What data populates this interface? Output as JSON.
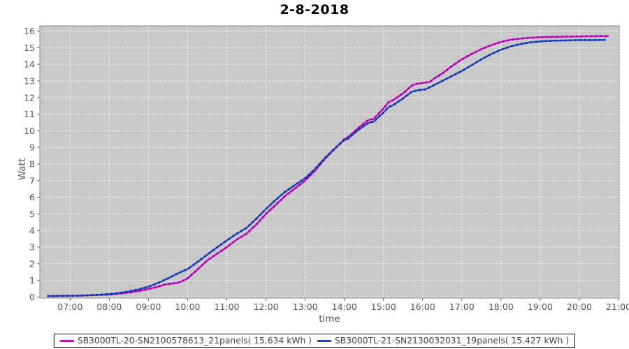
{
  "title": "2-8-2018",
  "colors": {
    "plot_background": "#C9C9C9",
    "plot_border": "#888888",
    "gridline": "#FFFFFF",
    "tick_text": "#555555",
    "series1": "#CC00CC",
    "series1_dark": "#7A007A",
    "series2": "#1B46C8",
    "series2_dark": "#0A1E78"
  },
  "legend": {
    "items": [
      {
        "label": "SB3000TL-20-SN2100578613_21panels( 15.634 kWh )",
        "color": "#CC00CC"
      },
      {
        "label": "SB3000TL-21-SN2130032031_19panels( 15.427 kWh )",
        "color": "#1B46C8"
      }
    ]
  },
  "chart_data": {
    "type": "line",
    "title": "2-8-2018",
    "xlabel": "time",
    "ylabel": "Watt",
    "xlim_hours": [
      6.23,
      21.02
    ],
    "ylim": [
      0,
      16.35
    ],
    "grid": true,
    "legend_position": "bottom",
    "y_ticks": [
      0,
      1,
      2,
      3,
      4,
      5,
      6,
      7,
      8,
      9,
      10,
      11,
      12,
      13,
      14,
      15,
      16
    ],
    "x_ticks": [
      {
        "t": 7,
        "label": "07:00"
      },
      {
        "t": 8,
        "label": "08:00"
      },
      {
        "t": 9,
        "label": "09:00"
      },
      {
        "t": 10,
        "label": "10:00"
      },
      {
        "t": 11,
        "label": "11:00"
      },
      {
        "t": 12,
        "label": "12:00"
      },
      {
        "t": 13,
        "label": "13:00"
      },
      {
        "t": 14,
        "label": "14:00"
      },
      {
        "t": 15,
        "label": "15:00"
      },
      {
        "t": 16,
        "label": "16:00"
      },
      {
        "t": 17,
        "label": "17:00"
      },
      {
        "t": 18,
        "label": "18:00"
      },
      {
        "t": 19,
        "label": "19:00"
      },
      {
        "t": 20,
        "label": "20:00"
      },
      {
        "t": 21,
        "label": "21:00"
      }
    ],
    "series": [
      {
        "name": "SB3000TL-20-SN2100578613_21panels( 15.634 kWh )",
        "total_kwh": 15.634,
        "color": "#CC00CC",
        "points": [
          [
            6.42,
            0.05
          ],
          [
            6.67,
            0.06
          ],
          [
            7.0,
            0.07
          ],
          [
            7.33,
            0.09
          ],
          [
            7.67,
            0.12
          ],
          [
            8.0,
            0.15
          ],
          [
            8.25,
            0.2
          ],
          [
            8.5,
            0.27
          ],
          [
            8.75,
            0.36
          ],
          [
            9.0,
            0.48
          ],
          [
            9.25,
            0.62
          ],
          [
            9.42,
            0.75
          ],
          [
            9.55,
            0.8
          ],
          [
            9.75,
            0.85
          ],
          [
            9.9,
            1.0
          ],
          [
            10.0,
            1.12
          ],
          [
            10.25,
            1.65
          ],
          [
            10.5,
            2.2
          ],
          [
            10.75,
            2.6
          ],
          [
            11.0,
            3.0
          ],
          [
            11.25,
            3.45
          ],
          [
            11.5,
            3.8
          ],
          [
            11.75,
            4.35
          ],
          [
            12.0,
            5.0
          ],
          [
            12.25,
            5.55
          ],
          [
            12.5,
            6.1
          ],
          [
            12.75,
            6.55
          ],
          [
            13.0,
            7.0
          ],
          [
            13.25,
            7.6
          ],
          [
            13.5,
            8.3
          ],
          [
            13.75,
            8.9
          ],
          [
            13.92,
            9.3
          ],
          [
            14.0,
            9.5
          ],
          [
            14.08,
            9.58
          ],
          [
            14.25,
            9.95
          ],
          [
            14.5,
            10.45
          ],
          [
            14.62,
            10.65
          ],
          [
            14.75,
            10.72
          ],
          [
            15.0,
            11.35
          ],
          [
            15.13,
            11.72
          ],
          [
            15.25,
            11.85
          ],
          [
            15.5,
            12.25
          ],
          [
            15.72,
            12.72
          ],
          [
            15.83,
            12.82
          ],
          [
            16.0,
            12.88
          ],
          [
            16.17,
            12.93
          ],
          [
            16.33,
            13.2
          ],
          [
            16.5,
            13.45
          ],
          [
            16.75,
            13.9
          ],
          [
            17.0,
            14.3
          ],
          [
            17.25,
            14.62
          ],
          [
            17.5,
            14.92
          ],
          [
            17.75,
            15.15
          ],
          [
            18.0,
            15.35
          ],
          [
            18.25,
            15.48
          ],
          [
            18.5,
            15.55
          ],
          [
            18.75,
            15.6
          ],
          [
            19.0,
            15.63
          ],
          [
            19.33,
            15.65
          ],
          [
            19.67,
            15.67
          ],
          [
            20.0,
            15.68
          ],
          [
            20.33,
            15.69
          ],
          [
            20.75,
            15.7
          ]
        ]
      },
      {
        "name": "SB3000TL-21-SN2130032031_19panels( 15.427 kWh )",
        "total_kwh": 15.427,
        "color": "#1B46C8",
        "points": [
          [
            6.42,
            0.05
          ],
          [
            6.67,
            0.06
          ],
          [
            7.0,
            0.07
          ],
          [
            7.33,
            0.09
          ],
          [
            7.67,
            0.13
          ],
          [
            8.0,
            0.17
          ],
          [
            8.25,
            0.24
          ],
          [
            8.5,
            0.33
          ],
          [
            8.75,
            0.46
          ],
          [
            9.0,
            0.62
          ],
          [
            9.25,
            0.85
          ],
          [
            9.5,
            1.12
          ],
          [
            9.75,
            1.42
          ],
          [
            10.0,
            1.68
          ],
          [
            10.25,
            2.1
          ],
          [
            10.5,
            2.55
          ],
          [
            10.75,
            2.98
          ],
          [
            11.0,
            3.4
          ],
          [
            11.25,
            3.8
          ],
          [
            11.5,
            4.15
          ],
          [
            11.75,
            4.7
          ],
          [
            12.0,
            5.3
          ],
          [
            12.25,
            5.85
          ],
          [
            12.5,
            6.35
          ],
          [
            12.75,
            6.75
          ],
          [
            13.0,
            7.15
          ],
          [
            13.25,
            7.7
          ],
          [
            13.5,
            8.35
          ],
          [
            13.75,
            8.92
          ],
          [
            13.92,
            9.28
          ],
          [
            14.0,
            9.45
          ],
          [
            14.08,
            9.5
          ],
          [
            14.25,
            9.85
          ],
          [
            14.5,
            10.3
          ],
          [
            14.62,
            10.48
          ],
          [
            14.75,
            10.55
          ],
          [
            15.0,
            11.1
          ],
          [
            15.13,
            11.42
          ],
          [
            15.25,
            11.55
          ],
          [
            15.5,
            11.95
          ],
          [
            15.72,
            12.35
          ],
          [
            15.9,
            12.45
          ],
          [
            16.08,
            12.5
          ],
          [
            16.25,
            12.7
          ],
          [
            16.5,
            13.0
          ],
          [
            16.75,
            13.3
          ],
          [
            17.0,
            13.6
          ],
          [
            17.25,
            13.95
          ],
          [
            17.5,
            14.3
          ],
          [
            17.75,
            14.62
          ],
          [
            18.0,
            14.88
          ],
          [
            18.25,
            15.08
          ],
          [
            18.5,
            15.22
          ],
          [
            18.75,
            15.32
          ],
          [
            19.0,
            15.38
          ],
          [
            19.33,
            15.42
          ],
          [
            19.67,
            15.44
          ],
          [
            20.0,
            15.46
          ],
          [
            20.33,
            15.46
          ],
          [
            20.67,
            15.47
          ]
        ]
      }
    ]
  }
}
